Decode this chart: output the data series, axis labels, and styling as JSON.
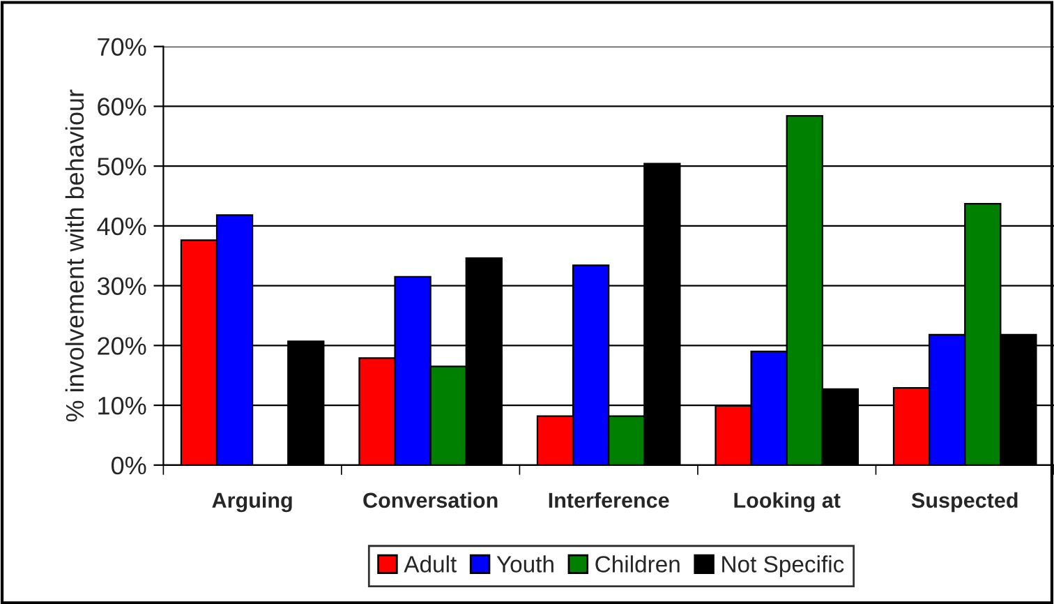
{
  "chart_data": {
    "type": "bar",
    "ylabel": "% involvement with behaviour",
    "categories": [
      "Arguing",
      "Conversation",
      "Interference",
      "Looking at",
      "Suspected"
    ],
    "series": [
      {
        "name": "Adult",
        "color": "#ff0000",
        "values": [
          37.6,
          17.9,
          8.2,
          9.9,
          12.9
        ]
      },
      {
        "name": "Youth",
        "color": "#0000ff",
        "values": [
          41.8,
          31.5,
          33.4,
          19.0,
          21.8
        ]
      },
      {
        "name": "Children",
        "color": "#008000",
        "values": [
          null,
          16.5,
          8.2,
          58.4,
          43.7
        ]
      },
      {
        "name": "Not Specific",
        "color": "#000000",
        "values": [
          20.7,
          34.6,
          50.4,
          12.7,
          21.8
        ]
      }
    ],
    "ylim": [
      0,
      70
    ],
    "yticks": [
      {
        "value": 0,
        "label": "0%"
      },
      {
        "value": 10,
        "label": "10%"
      },
      {
        "value": 20,
        "label": "20%"
      },
      {
        "value": 30,
        "label": "30%"
      },
      {
        "value": 40,
        "label": "40%"
      },
      {
        "value": 50,
        "label": "50%"
      },
      {
        "value": 60,
        "label": "60%"
      },
      {
        "value": 70,
        "label": "70%"
      }
    ],
    "grid": "y",
    "legend": "bottom"
  }
}
